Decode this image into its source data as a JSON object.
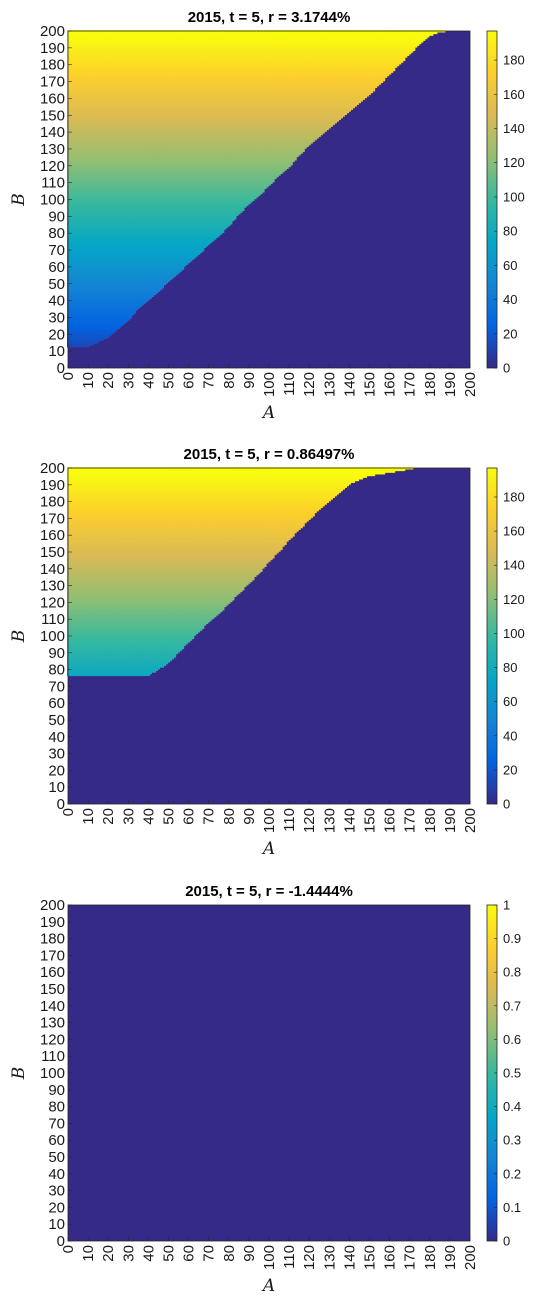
{
  "chart_data": [
    {
      "type": "heatmap",
      "title": "2015, t = 5, r = 3.1744%",
      "xlabel": "A",
      "ylabel": "B",
      "x_ticks": [
        "0",
        "10",
        "20",
        "30",
        "40",
        "50",
        "60",
        "70",
        "80",
        "90",
        "100",
        "110",
        "120",
        "130",
        "140",
        "150",
        "160",
        "170",
        "180",
        "190",
        "200"
      ],
      "y_ticks": [
        "0",
        "10",
        "20",
        "30",
        "40",
        "50",
        "60",
        "70",
        "80",
        "90",
        "100",
        "110",
        "120",
        "130",
        "140",
        "150",
        "160",
        "170",
        "180",
        "190",
        "200"
      ],
      "xlim": [
        0,
        200
      ],
      "ylim": [
        0,
        200
      ],
      "colorbar_ticks": [
        "0",
        "20",
        "40",
        "60",
        "80",
        "100",
        "120",
        "140",
        "160",
        "180"
      ],
      "clim": [
        0,
        197
      ],
      "colormap": "parula",
      "value_rule": "cell value equals B where B >= boundary(A), otherwise 0",
      "boundary": {
        "A": [
          0,
          10,
          15,
          20,
          25,
          30,
          35,
          40,
          45,
          50,
          55,
          60,
          65,
          70,
          75,
          80,
          85,
          90,
          95,
          100,
          105,
          110,
          115,
          120,
          125,
          130,
          135,
          140,
          145,
          150,
          155,
          160,
          165,
          170,
          175,
          180,
          185,
          190,
          200
        ],
        "B": [
          13,
          13,
          16,
          19,
          24,
          29,
          36,
          41,
          46,
          52,
          57,
          63,
          68,
          74,
          79,
          85,
          92,
          98,
          103,
          109,
          115,
          120,
          127,
          133,
          138,
          143,
          148,
          153,
          158,
          163,
          169,
          175,
          181,
          187,
          193,
          198,
          200,
          201,
          201
        ]
      }
    },
    {
      "type": "heatmap",
      "title": "2015, t = 5, r = 0.86497%",
      "xlabel": "A",
      "ylabel": "B",
      "x_ticks": [
        "0",
        "10",
        "20",
        "30",
        "40",
        "50",
        "60",
        "70",
        "80",
        "90",
        "100",
        "110",
        "120",
        "130",
        "140",
        "150",
        "160",
        "170",
        "180",
        "190",
        "200"
      ],
      "y_ticks": [
        "0",
        "10",
        "20",
        "30",
        "40",
        "50",
        "60",
        "70",
        "80",
        "90",
        "100",
        "110",
        "120",
        "130",
        "140",
        "150",
        "160",
        "170",
        "180",
        "190",
        "200"
      ],
      "xlim": [
        0,
        200
      ],
      "ylim": [
        0,
        200
      ],
      "colorbar_ticks": [
        "0",
        "20",
        "40",
        "60",
        "80",
        "100",
        "120",
        "140",
        "160",
        "180"
      ],
      "clim": [
        0,
        197
      ],
      "colormap": "parula",
      "value_rule": "cell value equals B where B >= boundary(A), otherwise 0",
      "boundary": {
        "A": [
          0,
          40,
          44,
          48,
          52,
          56,
          60,
          65,
          70,
          75,
          80,
          85,
          90,
          95,
          100,
          105,
          110,
          115,
          120,
          125,
          130,
          135,
          140,
          145,
          150,
          155,
          160,
          165,
          170,
          173,
          200
        ],
        "B": [
          77,
          77,
          80,
          83,
          87,
          92,
          97,
          103,
          109,
          114,
          120,
          126,
          132,
          138,
          145,
          151,
          158,
          164,
          170,
          176,
          181,
          186,
          191,
          194,
          196,
          197,
          198,
          199,
          200,
          201,
          201
        ]
      }
    },
    {
      "type": "heatmap",
      "title": "2015, t = 5, r = -1.4444%",
      "xlabel": "A",
      "ylabel": "B",
      "x_ticks": [
        "0",
        "10",
        "20",
        "30",
        "40",
        "50",
        "60",
        "70",
        "80",
        "90",
        "100",
        "110",
        "120",
        "130",
        "140",
        "150",
        "160",
        "170",
        "180",
        "190",
        "200"
      ],
      "y_ticks": [
        "0",
        "10",
        "20",
        "30",
        "40",
        "50",
        "60",
        "70",
        "80",
        "90",
        "100",
        "110",
        "120",
        "130",
        "140",
        "150",
        "160",
        "170",
        "180",
        "190",
        "200"
      ],
      "xlim": [
        0,
        200
      ],
      "ylim": [
        0,
        200
      ],
      "colorbar_ticks": [
        "0",
        "0.1",
        "0.2",
        "0.3",
        "0.4",
        "0.5",
        "0.6",
        "0.7",
        "0.8",
        "0.9",
        "1"
      ],
      "clim": [
        0,
        1
      ],
      "colormap": "parula",
      "value_rule": "all cells equal 0",
      "boundary": {
        "A": [
          0,
          200
        ],
        "B": [
          201,
          201
        ]
      }
    }
  ]
}
